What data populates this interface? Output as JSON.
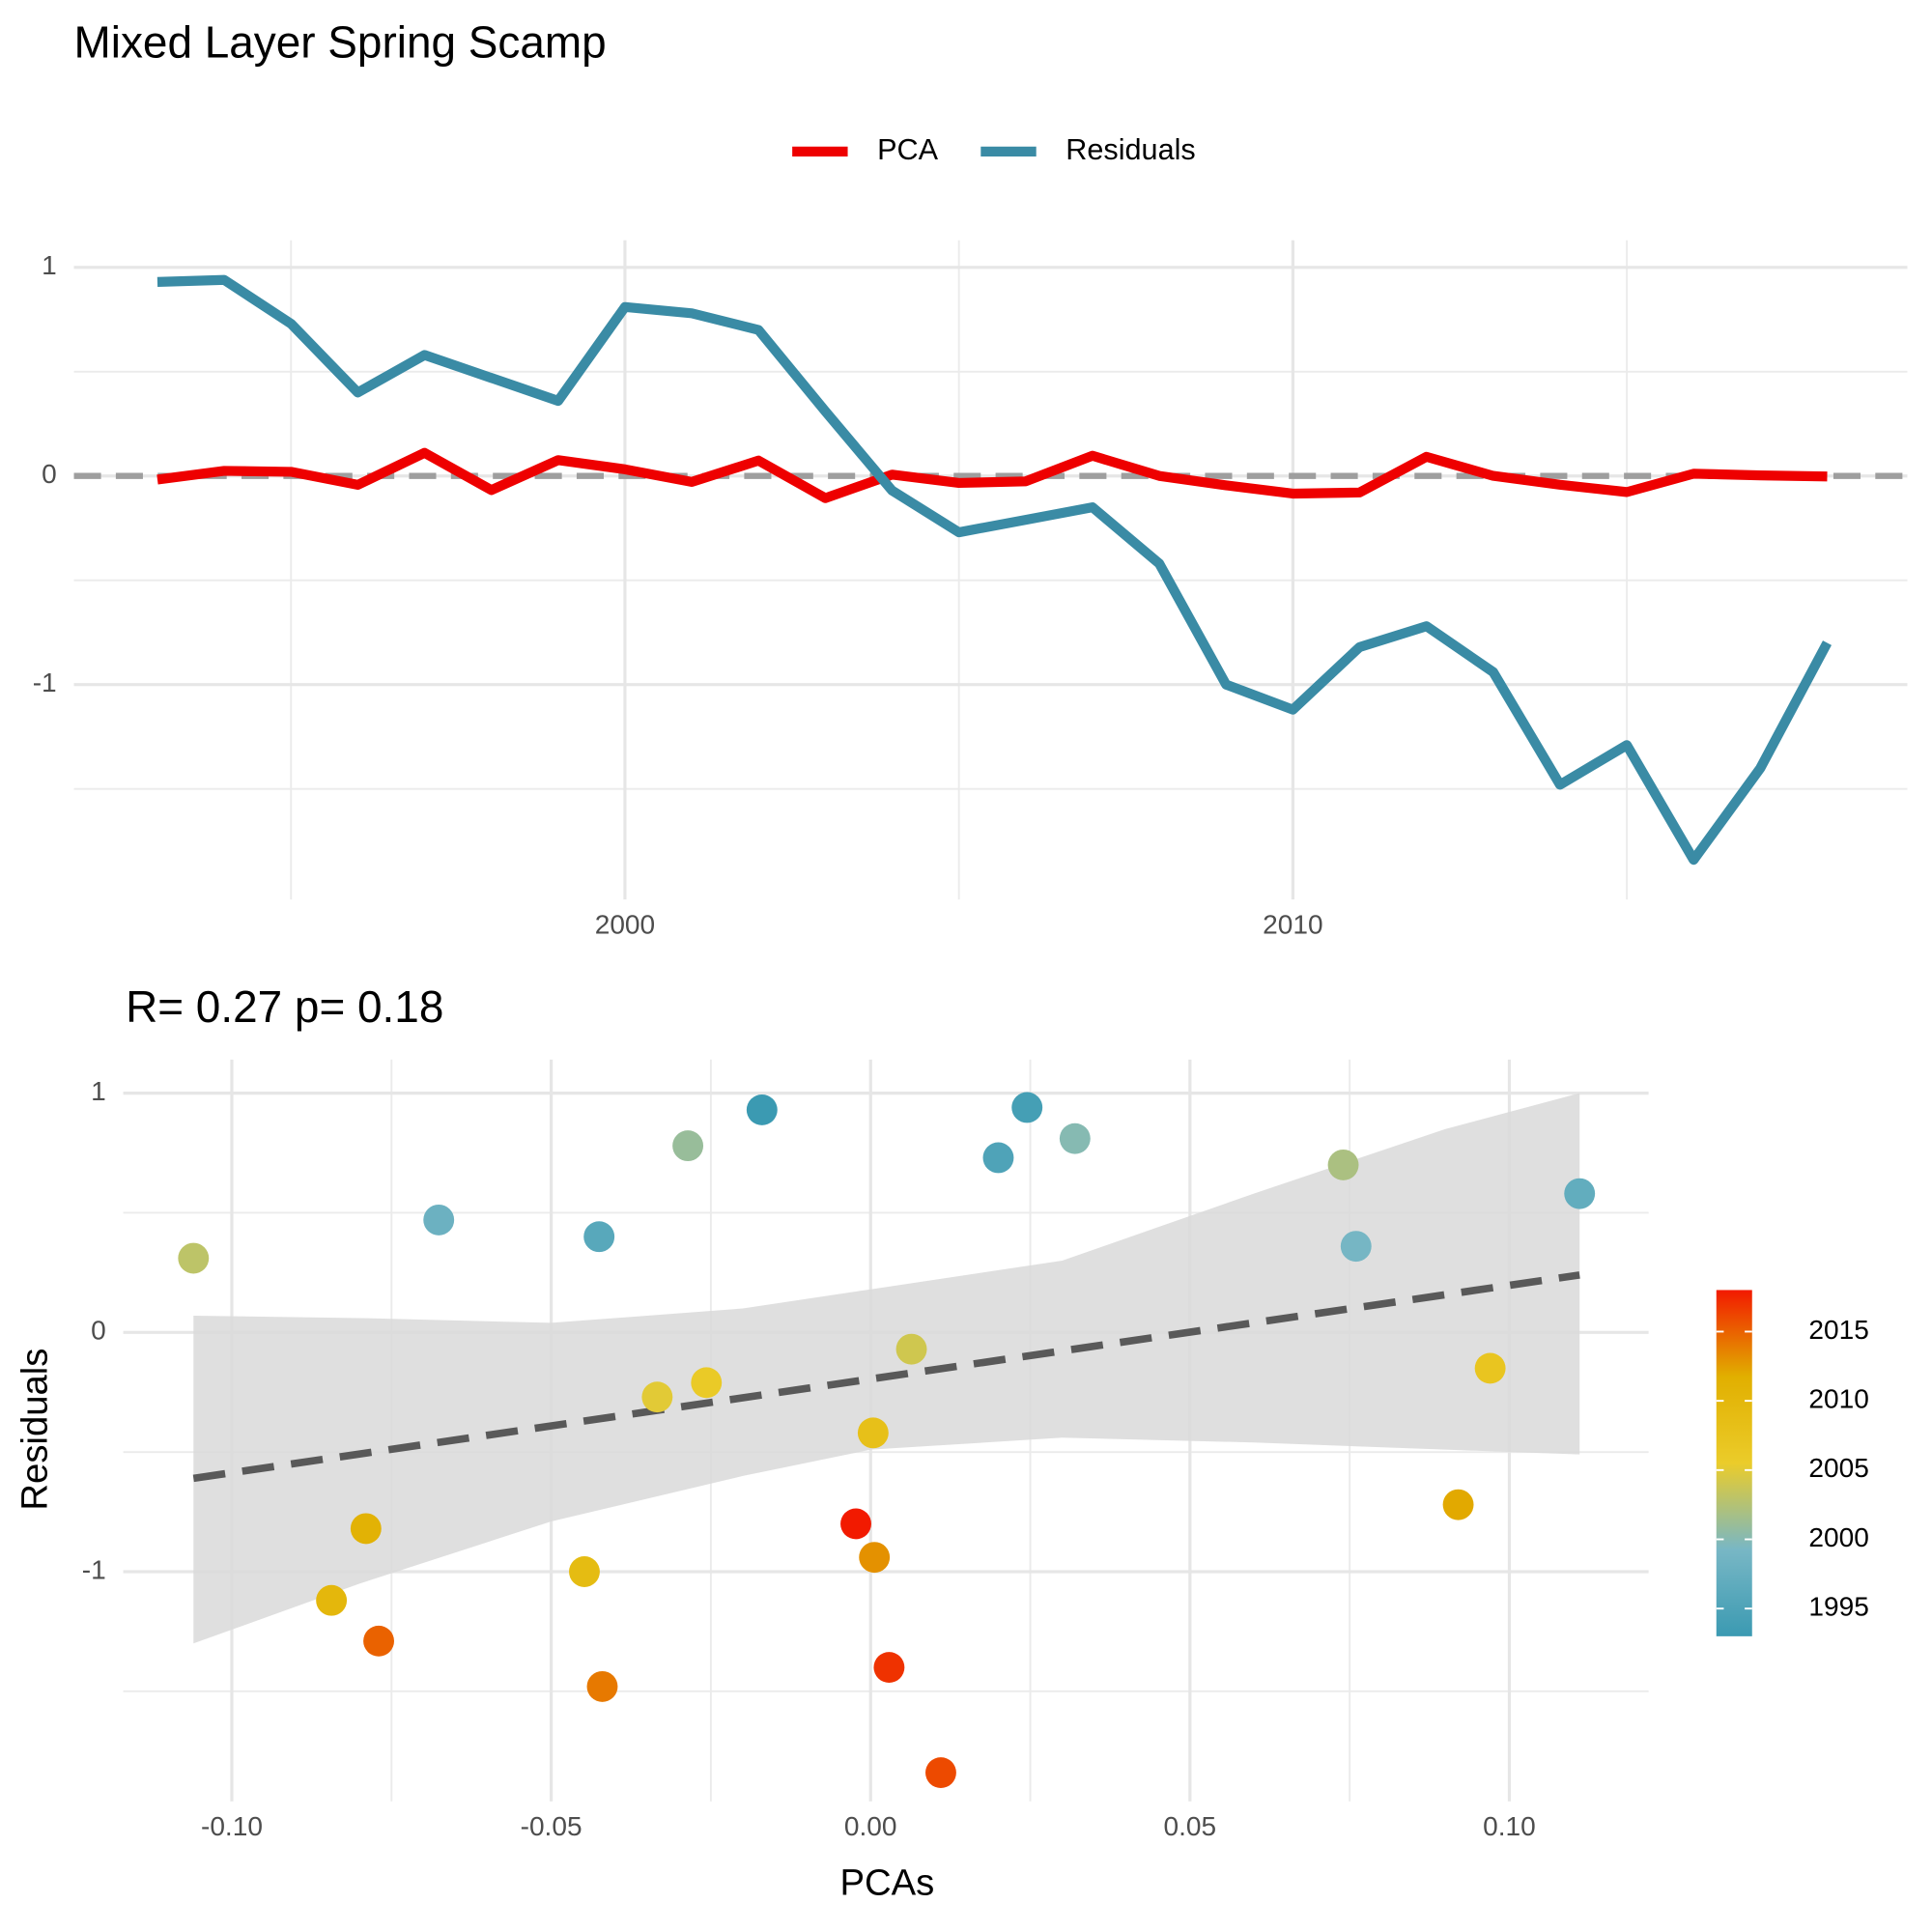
{
  "chart_data": [
    {
      "type": "line",
      "title": "Mixed Layer Spring Scamp",
      "x": [
        1993,
        1994,
        1995,
        1996,
        1997,
        1998,
        1999,
        2000,
        2001,
        2002,
        2003,
        2004,
        2005,
        2006,
        2007,
        2008,
        2009,
        2010,
        2011,
        2012,
        2013,
        2014,
        2015,
        2016,
        2017,
        2018
      ],
      "series": [
        {
          "name": "PCA",
          "color": "#EE0000",
          "values": [
            -0.017,
            0.0245,
            0.02,
            -0.0425,
            0.111,
            -0.0676,
            0.076,
            0.032,
            -0.0286,
            0.074,
            -0.106,
            0.0064,
            -0.0334,
            -0.0257,
            0.097,
            0.0004,
            -0.0448,
            -0.0844,
            -0.079,
            0.092,
            0.0006,
            -0.042,
            -0.077,
            0.011,
            0.0029,
            -0.0023
          ]
        },
        {
          "name": "Residuals",
          "color": "#3A8BA5",
          "values": [
            0.93,
            0.94,
            0.73,
            0.4,
            0.58,
            0.47,
            0.36,
            0.81,
            0.78,
            0.7,
            0.31,
            -0.07,
            -0.27,
            -0.21,
            -0.15,
            -0.42,
            -1.0,
            -1.12,
            -0.82,
            -0.72,
            -0.94,
            -1.48,
            -1.29,
            -1.84,
            -1.4,
            -0.8
          ]
        }
      ],
      "xlim": [
        1991.75,
        2019.2
      ],
      "ylim": [
        -2.03,
        1.13
      ],
      "xticks": [
        2000,
        2010
      ],
      "minor_xticks": [
        1995,
        2005,
        2015
      ],
      "yticks": [
        -1,
        0,
        1
      ],
      "minor_yticks": [
        -1.5,
        -0.5,
        0.5
      ],
      "hline": 0,
      "grid": true,
      "legend": "top"
    },
    {
      "type": "scatter",
      "title": "R= 0.27  p= 0.18",
      "xlabel": "PCAs",
      "ylabel": "Residuals",
      "x": [
        -0.017,
        0.0245,
        0.02,
        -0.0425,
        0.111,
        -0.0676,
        0.076,
        0.032,
        -0.0286,
        0.074,
        -0.106,
        0.0064,
        -0.0334,
        -0.0257,
        0.097,
        0.0004,
        -0.0448,
        -0.0844,
        -0.079,
        0.092,
        0.0006,
        -0.042,
        -0.077,
        0.011,
        0.0029,
        -0.0023
      ],
      "y": [
        0.93,
        0.94,
        0.73,
        0.4,
        0.58,
        0.47,
        0.36,
        0.81,
        0.78,
        0.7,
        0.31,
        -0.07,
        -0.27,
        -0.21,
        -0.15,
        -0.42,
        -1.0,
        -1.12,
        -0.82,
        -0.72,
        -0.94,
        -1.48,
        -1.29,
        -1.84,
        -1.4,
        -0.8
      ],
      "color_values": [
        1993,
        1994,
        1995,
        1996,
        1997,
        1998,
        1999,
        2000,
        2001,
        2002,
        2003,
        2004,
        2005,
        2006,
        2007,
        2008,
        2009,
        2010,
        2011,
        2012,
        2013,
        2014,
        2015,
        2016,
        2017,
        2018
      ],
      "palette": [
        "#3B9AB2",
        "#78B7C5",
        "#EBCC2A",
        "#E1AF00",
        "#F21A00"
      ],
      "color_lim": [
        1993,
        2018
      ],
      "color_ticks": [
        1995,
        2000,
        2005,
        2010,
        2015
      ],
      "xlim": [
        -0.117,
        0.1218
      ],
      "ylim": [
        -1.96,
        1.14
      ],
      "xticks": [
        {
          "value": -0.1,
          "label": "-0.10"
        },
        {
          "value": -0.05,
          "label": "-0.05"
        },
        {
          "value": 0,
          "label": "0.00"
        },
        {
          "value": 0.05,
          "label": "0.05"
        },
        {
          "value": 0.1,
          "label": "0.10"
        }
      ],
      "minor_xticks": [
        -0.075,
        -0.025,
        0.025,
        0.075
      ],
      "yticks": [
        -1,
        0,
        1
      ],
      "minor_yticks": [
        -1.5,
        -0.5,
        0.5
      ],
      "grid": true,
      "fit": {
        "x": [
          -0.106,
          0.111
        ],
        "y": [
          -0.61,
          0.24
        ]
      },
      "band": {
        "x": [
          -0.106,
          -0.08,
          -0.05,
          -0.02,
          0.0,
          0.03,
          0.06,
          0.09,
          0.111
        ],
        "lower": [
          -1.3,
          -1.05,
          -0.79,
          -0.6,
          -0.49,
          -0.44,
          -0.46,
          -0.49,
          -0.51
        ],
        "upper": [
          0.07,
          0.06,
          0.04,
          0.1,
          0.18,
          0.3,
          0.58,
          0.85,
          1.0
        ]
      }
    }
  ]
}
